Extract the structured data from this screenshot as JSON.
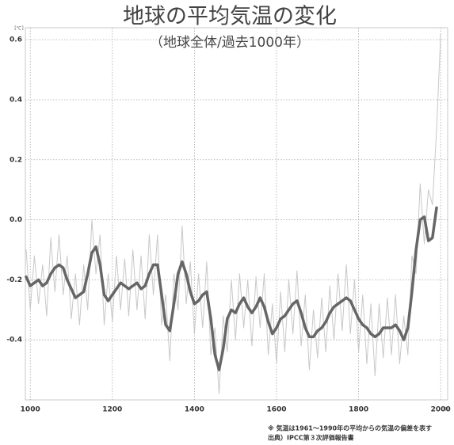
{
  "chart_data": {
    "type": "line",
    "title": "地球の平均気温の変化",
    "subtitle": "（地球全体/過去1000年）",
    "y_unit": "[℃]",
    "x_unit": "[年]",
    "notes": [
      "※ 気温は1961～1990年の平均からの気温の偏差を表す",
      "出典）IPCC第３次評価報告書"
    ],
    "xlim": [
      988,
      2017
    ],
    "ylim": [
      -0.6,
      0.64
    ],
    "xticks": [
      1000,
      1200,
      1400,
      1600,
      1800,
      2000
    ],
    "yticks": [
      0.6,
      0.4,
      0.2,
      {
        "value": 0,
        "label": "0.0"
      },
      -0.2,
      -0.4
    ],
    "grid": true,
    "x": [
      990,
      1000,
      1010,
      1020,
      1030,
      1040,
      1050,
      1060,
      1070,
      1080,
      1090,
      1100,
      1110,
      1120,
      1130,
      1140,
      1150,
      1160,
      1170,
      1180,
      1190,
      1200,
      1210,
      1220,
      1230,
      1240,
      1250,
      1260,
      1270,
      1280,
      1290,
      1300,
      1310,
      1320,
      1330,
      1340,
      1350,
      1360,
      1370,
      1380,
      1390,
      1400,
      1410,
      1420,
      1430,
      1440,
      1450,
      1460,
      1470,
      1480,
      1490,
      1500,
      1510,
      1520,
      1530,
      1540,
      1550,
      1560,
      1570,
      1580,
      1590,
      1600,
      1610,
      1620,
      1630,
      1640,
      1650,
      1660,
      1670,
      1680,
      1690,
      1700,
      1710,
      1720,
      1730,
      1740,
      1750,
      1760,
      1770,
      1780,
      1790,
      1800,
      1810,
      1820,
      1830,
      1840,
      1850,
      1860,
      1870,
      1880,
      1890,
      1900,
      1910,
      1920,
      1930,
      1940,
      1950,
      1960,
      1970,
      1980,
      1990,
      2000
    ],
    "series": [
      {
        "color": "#c8c8c8",
        "width": 1,
        "values": [
          -0.1,
          -0.3,
          -0.12,
          -0.28,
          -0.15,
          -0.32,
          -0.06,
          -0.24,
          -0.05,
          -0.25,
          -0.12,
          -0.33,
          -0.18,
          -0.35,
          -0.15,
          -0.3,
          0.0,
          -0.18,
          -0.05,
          -0.35,
          -0.18,
          -0.34,
          -0.12,
          -0.3,
          -0.13,
          -0.32,
          -0.1,
          -0.3,
          -0.12,
          -0.33,
          -0.05,
          -0.25,
          -0.05,
          -0.35,
          -0.25,
          -0.47,
          -0.18,
          -0.3,
          -0.02,
          -0.28,
          -0.14,
          -0.38,
          -0.18,
          -0.36,
          -0.14,
          -0.45,
          -0.36,
          -0.58,
          -0.32,
          -0.44,
          -0.2,
          -0.4,
          -0.18,
          -0.36,
          -0.2,
          -0.42,
          -0.19,
          -0.36,
          -0.18,
          -0.45,
          -0.28,
          -0.48,
          -0.24,
          -0.44,
          -0.2,
          -0.38,
          -0.17,
          -0.42,
          -0.25,
          -0.5,
          -0.3,
          -0.46,
          -0.26,
          -0.44,
          -0.22,
          -0.4,
          -0.18,
          -0.37,
          -0.15,
          -0.38,
          -0.2,
          -0.44,
          -0.25,
          -0.48,
          -0.28,
          -0.52,
          -0.28,
          -0.46,
          -0.26,
          -0.45,
          -0.25,
          -0.48,
          -0.32,
          -0.45,
          -0.12,
          -0.18,
          0.12,
          -0.08,
          0.1,
          0.05,
          0.3,
          0.62
        ]
      },
      {
        "color": "#666666",
        "width": 3.5,
        "values": [
          -0.19,
          -0.22,
          -0.21,
          -0.2,
          -0.22,
          -0.21,
          -0.18,
          -0.16,
          -0.15,
          -0.16,
          -0.2,
          -0.23,
          -0.26,
          -0.25,
          -0.24,
          -0.18,
          -0.11,
          -0.09,
          -0.15,
          -0.25,
          -0.27,
          -0.25,
          -0.23,
          -0.21,
          -0.22,
          -0.23,
          -0.22,
          -0.21,
          -0.23,
          -0.22,
          -0.18,
          -0.15,
          -0.15,
          -0.25,
          -0.35,
          -0.37,
          -0.28,
          -0.18,
          -0.14,
          -0.18,
          -0.24,
          -0.28,
          -0.27,
          -0.25,
          -0.24,
          -0.33,
          -0.45,
          -0.5,
          -0.43,
          -0.33,
          -0.3,
          -0.31,
          -0.28,
          -0.26,
          -0.29,
          -0.31,
          -0.29,
          -0.26,
          -0.29,
          -0.34,
          -0.38,
          -0.36,
          -0.33,
          -0.32,
          -0.3,
          -0.28,
          -0.27,
          -0.31,
          -0.36,
          -0.39,
          -0.39,
          -0.37,
          -0.36,
          -0.34,
          -0.31,
          -0.29,
          -0.28,
          -0.27,
          -0.26,
          -0.27,
          -0.3,
          -0.33,
          -0.35,
          -0.36,
          -0.38,
          -0.39,
          -0.38,
          -0.36,
          -0.36,
          -0.36,
          -0.35,
          -0.37,
          -0.4,
          -0.36,
          -0.24,
          -0.1,
          0.0,
          0.01,
          -0.07,
          -0.06,
          0.04,
          null
        ]
      }
    ]
  }
}
